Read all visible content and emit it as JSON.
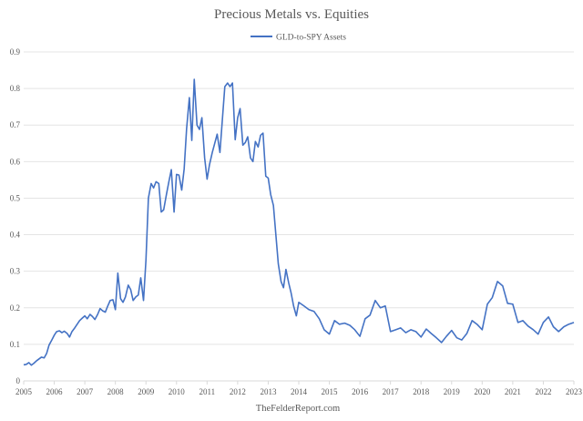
{
  "chart_data": {
    "type": "line",
    "title": "Precious Metals vs. Equities",
    "xlabel": "",
    "ylabel": "",
    "source": "TheFelderReport.com",
    "legend_position": "top-center",
    "grid": true,
    "ylim": [
      0,
      0.9
    ],
    "y_ticks": [
      "0",
      "0.1",
      "0.2",
      "0.3",
      "0.4",
      "0.5",
      "0.6",
      "0.7",
      "0.8",
      "0.9"
    ],
    "xlim": [
      2005,
      2023
    ],
    "x_ticks": [
      "2005",
      "2006",
      "2007",
      "2008",
      "2009",
      "2010",
      "2011",
      "2012",
      "2013",
      "2014",
      "2015",
      "2016",
      "2017",
      "2018",
      "2019",
      "2020",
      "2021",
      "2022",
      "2023"
    ],
    "series": [
      {
        "name": "GLD-to-SPY Assets",
        "color": "#4472c4",
        "x": [
          2005.0,
          2005.08,
          2005.17,
          2005.25,
          2005.33,
          2005.42,
          2005.5,
          2005.58,
          2005.67,
          2005.75,
          2005.83,
          2005.92,
          2006.0,
          2006.08,
          2006.17,
          2006.25,
          2006.33,
          2006.42,
          2006.5,
          2006.58,
          2006.67,
          2006.75,
          2006.83,
          2006.92,
          2007.0,
          2007.08,
          2007.17,
          2007.25,
          2007.33,
          2007.42,
          2007.5,
          2007.58,
          2007.67,
          2007.75,
          2007.83,
          2007.92,
          2008.0,
          2008.08,
          2008.17,
          2008.25,
          2008.33,
          2008.42,
          2008.5,
          2008.58,
          2008.67,
          2008.75,
          2008.83,
          2008.92,
          2009.0,
          2009.08,
          2009.17,
          2009.25,
          2009.33,
          2009.42,
          2009.5,
          2009.58,
          2009.67,
          2009.75,
          2009.83,
          2009.92,
          2010.0,
          2010.08,
          2010.17,
          2010.25,
          2010.33,
          2010.42,
          2010.5,
          2010.58,
          2010.67,
          2010.75,
          2010.83,
          2010.92,
          2011.0,
          2011.08,
          2011.17,
          2011.25,
          2011.33,
          2011.42,
          2011.5,
          2011.58,
          2011.67,
          2011.75,
          2011.83,
          2011.92,
          2012.0,
          2012.08,
          2012.17,
          2012.25,
          2012.33,
          2012.42,
          2012.5,
          2012.58,
          2012.67,
          2012.75,
          2012.83,
          2012.92,
          2013.0,
          2013.08,
          2013.17,
          2013.25,
          2013.33,
          2013.42,
          2013.5,
          2013.58,
          2013.67,
          2013.75,
          2013.83,
          2013.92,
          2014.0,
          2014.17,
          2014.33,
          2014.5,
          2014.67,
          2014.83,
          2015.0,
          2015.17,
          2015.33,
          2015.5,
          2015.67,
          2015.83,
          2016.0,
          2016.17,
          2016.33,
          2016.5,
          2016.67,
          2016.83,
          2017.0,
          2017.17,
          2017.33,
          2017.5,
          2017.67,
          2017.83,
          2018.0,
          2018.17,
          2018.33,
          2018.5,
          2018.67,
          2018.83,
          2019.0,
          2019.17,
          2019.33,
          2019.5,
          2019.67,
          2019.83,
          2020.0,
          2020.17,
          2020.33,
          2020.5,
          2020.67,
          2020.83,
          2021.0,
          2021.17,
          2021.33,
          2021.5,
          2021.67,
          2021.83,
          2022.0,
          2022.17,
          2022.33,
          2022.5,
          2022.67,
          2022.83,
          2023.0
        ],
        "values": [
          0.044,
          0.045,
          0.05,
          0.043,
          0.048,
          0.055,
          0.06,
          0.065,
          0.063,
          0.075,
          0.098,
          0.112,
          0.125,
          0.135,
          0.137,
          0.132,
          0.136,
          0.13,
          0.12,
          0.135,
          0.145,
          0.155,
          0.165,
          0.172,
          0.178,
          0.17,
          0.182,
          0.176,
          0.168,
          0.182,
          0.198,
          0.192,
          0.188,
          0.205,
          0.22,
          0.222,
          0.195,
          0.295,
          0.225,
          0.215,
          0.23,
          0.262,
          0.25,
          0.22,
          0.23,
          0.235,
          0.282,
          0.22,
          0.33,
          0.5,
          0.54,
          0.528,
          0.545,
          0.54,
          0.462,
          0.468,
          0.51,
          0.545,
          0.578,
          0.462,
          0.565,
          0.563,
          0.522,
          0.58,
          0.69,
          0.775,
          0.658,
          0.825,
          0.7,
          0.688,
          0.72,
          0.61,
          0.552,
          0.592,
          0.625,
          0.65,
          0.675,
          0.625,
          0.715,
          0.805,
          0.815,
          0.805,
          0.815,
          0.66,
          0.72,
          0.745,
          0.645,
          0.652,
          0.668,
          0.61,
          0.6,
          0.655,
          0.64,
          0.672,
          0.678,
          0.56,
          0.555,
          0.51,
          0.48,
          0.4,
          0.32,
          0.272,
          0.255,
          0.305,
          0.268,
          0.24,
          0.205,
          0.178,
          0.215,
          0.205,
          0.195,
          0.19,
          0.17,
          0.14,
          0.128,
          0.165,
          0.155,
          0.158,
          0.152,
          0.14,
          0.122,
          0.17,
          0.18,
          0.22,
          0.2,
          0.205,
          0.135,
          0.14,
          0.145,
          0.132,
          0.14,
          0.135,
          0.12,
          0.142,
          0.13,
          0.118,
          0.105,
          0.122,
          0.138,
          0.118,
          0.112,
          0.13,
          0.165,
          0.155,
          0.14,
          0.21,
          0.228,
          0.272,
          0.26,
          0.212,
          0.21,
          0.16,
          0.165,
          0.15,
          0.14,
          0.128,
          0.16,
          0.175,
          0.148,
          0.135,
          0.148,
          0.155,
          0.16
        ]
      }
    ]
  }
}
